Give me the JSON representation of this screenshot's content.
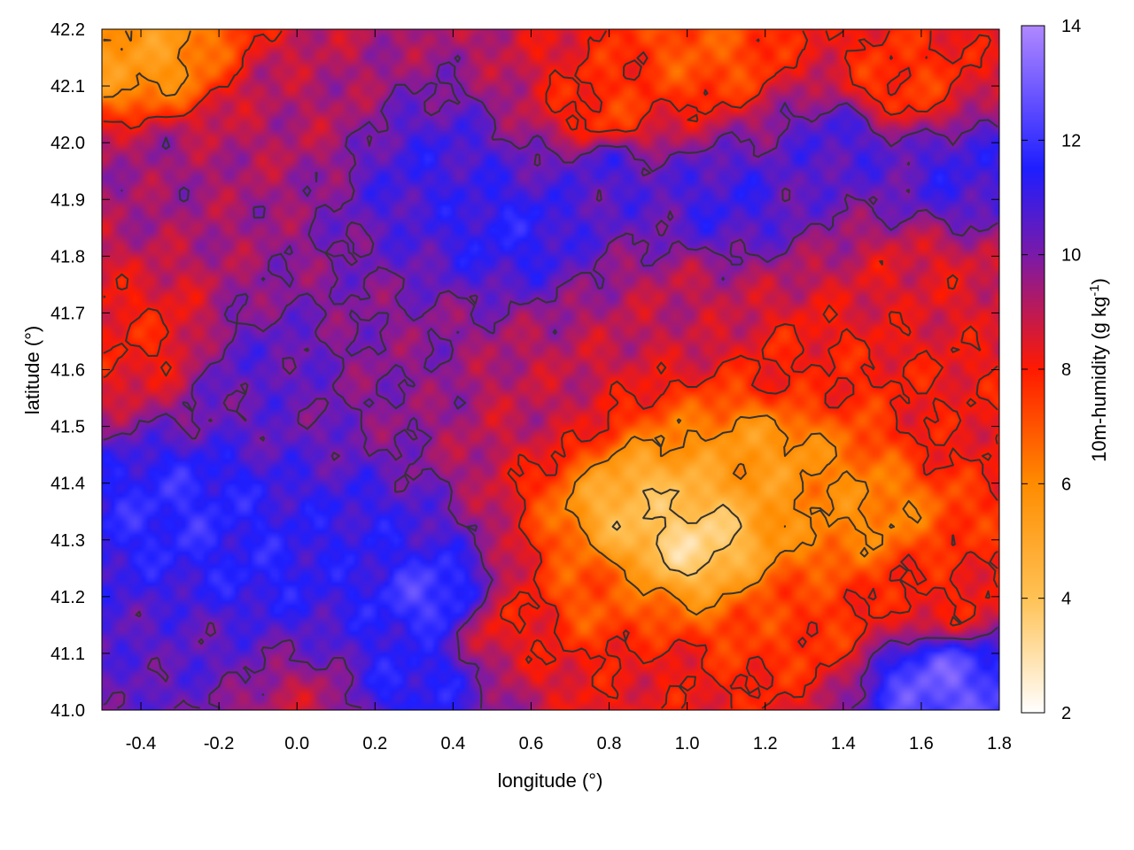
{
  "chart_data": {
    "type": "heatmap",
    "xlabel": "longitude (°)",
    "ylabel": "latitude (°)",
    "colorbar_label": "10m-humidity (g kg-1)",
    "colorbar_label_parts": [
      "10m-humidity (g kg",
      "-1",
      ")"
    ],
    "xlim": [
      -0.5,
      1.8
    ],
    "ylim": [
      41.0,
      42.2
    ],
    "x_ticks": [
      -0.4,
      -0.2,
      0.0,
      0.2,
      0.4,
      0.6,
      0.8,
      1.0,
      1.2,
      1.4,
      1.6,
      1.8
    ],
    "x_tick_labels": [
      "-0.4",
      "-0.2",
      "0.0",
      "0.2",
      "0.4",
      "0.6",
      "0.8",
      "1.0",
      "1.2",
      "1.4",
      "1.6",
      "1.8"
    ],
    "y_ticks": [
      41.0,
      41.1,
      41.2,
      41.3,
      41.4,
      41.5,
      41.6,
      41.7,
      41.8,
      41.9,
      42.0,
      42.1,
      42.2
    ],
    "y_tick_labels": [
      "41.0",
      "41.1",
      "41.2",
      "41.3",
      "41.4",
      "41.5",
      "41.6",
      "41.7",
      "41.8",
      "41.9",
      "42.0",
      "42.1",
      "42.2"
    ],
    "colorbar_range": [
      2,
      14
    ],
    "colorbar_ticks": [
      2,
      4,
      6,
      8,
      10,
      12,
      14
    ],
    "colorbar_tick_labels": [
      "2",
      "4",
      "6",
      "8",
      "10",
      "12",
      "14"
    ],
    "colormap": [
      {
        "v": 2,
        "color": "#ffffff"
      },
      {
        "v": 4,
        "color": "#ffc255"
      },
      {
        "v": 6,
        "color": "#ff8c00"
      },
      {
        "v": 8,
        "color": "#ff1a00"
      },
      {
        "v": 10,
        "color": "#7a1aa8"
      },
      {
        "v": 11.5,
        "color": "#1e1eff"
      },
      {
        "v": 14,
        "color": "#b088ff"
      }
    ],
    "grid": false,
    "legend": "colorbar-right",
    "field_regions": [
      {
        "lon": -0.3,
        "lat": 41.35,
        "value": 11.8
      },
      {
        "lon": -0.1,
        "lat": 41.25,
        "value": 11.5
      },
      {
        "lon": 0.15,
        "lat": 41.3,
        "value": 11.2
      },
      {
        "lon": 0.35,
        "lat": 41.2,
        "value": 12.3
      },
      {
        "lon": 0.3,
        "lat": 41.05,
        "value": 11.5
      },
      {
        "lon": -0.1,
        "lat": 41.6,
        "value": 10.5
      },
      {
        "lon": 0.3,
        "lat": 41.6,
        "value": 9.8
      },
      {
        "lon": 0.6,
        "lat": 41.55,
        "value": 9.0
      },
      {
        "lon": -0.35,
        "lat": 41.95,
        "value": 9.5
      },
      {
        "lon": 0.0,
        "lat": 42.05,
        "value": 9.2
      },
      {
        "lon": 0.35,
        "lat": 41.95,
        "value": 11.0
      },
      {
        "lon": 0.55,
        "lat": 41.85,
        "value": 11.4
      },
      {
        "lon": 0.8,
        "lat": 41.95,
        "value": 10.8
      },
      {
        "lon": 1.1,
        "lat": 41.9,
        "value": 11.0
      },
      {
        "lon": 1.4,
        "lat": 42.0,
        "value": 10.8
      },
      {
        "lon": 1.7,
        "lat": 41.95,
        "value": 11.0
      },
      {
        "lon": 1.0,
        "lat": 41.7,
        "value": 9.0
      },
      {
        "lon": 1.3,
        "lat": 41.6,
        "value": 8.0
      },
      {
        "lon": 0.9,
        "lat": 41.35,
        "value": 4.2
      },
      {
        "lon": 1.0,
        "lat": 41.3,
        "value": 3.3
      },
      {
        "lon": 1.2,
        "lat": 41.45,
        "value": 5.5
      },
      {
        "lon": 1.45,
        "lat": 41.35,
        "value": 6.0
      },
      {
        "lon": 0.75,
        "lat": 41.2,
        "value": 7.0
      },
      {
        "lon": 0.9,
        "lat": 41.05,
        "value": 8.3
      },
      {
        "lon": 1.3,
        "lat": 41.15,
        "value": 7.5
      },
      {
        "lon": 1.65,
        "lat": 41.2,
        "value": 8.0
      },
      {
        "lon": 1.7,
        "lat": 41.5,
        "value": 8.2
      },
      {
        "lon": 0.55,
        "lat": 41.15,
        "value": 8.2
      },
      {
        "lon": -0.4,
        "lat": 41.65,
        "value": 8.0
      },
      {
        "lon": -0.25,
        "lat": 41.1,
        "value": 10.5
      },
      {
        "lon": 1.65,
        "lat": 41.05,
        "value": 12.8
      },
      {
        "lon": -0.4,
        "lat": 42.15,
        "value": 5.5
      },
      {
        "lon": 0.8,
        "lat": 42.05,
        "value": 7.5
      },
      {
        "lon": 1.05,
        "lat": 42.15,
        "value": 7.0
      },
      {
        "lon": 1.55,
        "lat": 42.1,
        "value": 7.5
      },
      {
        "lon": 0.0,
        "lat": 41.0,
        "value": 9.0
      },
      {
        "lon": 1.6,
        "lat": 41.75,
        "value": 8.5
      }
    ]
  }
}
